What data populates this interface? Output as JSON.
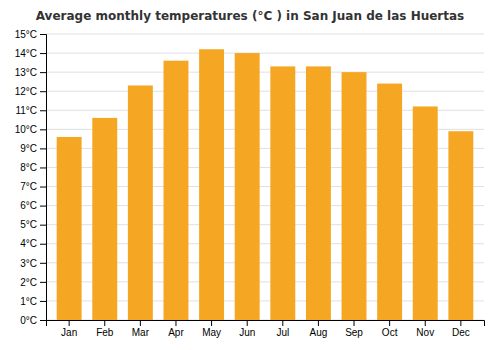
{
  "chart_data": {
    "type": "bar",
    "title": "Average monthly temperatures (°C ) in San Juan de las Huertas",
    "categories": [
      "Jan",
      "Feb",
      "Mar",
      "Apr",
      "May",
      "Jun",
      "Jul",
      "Aug",
      "Sep",
      "Oct",
      "Nov",
      "Dec"
    ],
    "values": [
      9.6,
      10.6,
      12.3,
      13.6,
      14.2,
      14.0,
      13.3,
      13.3,
      13.0,
      12.4,
      11.2,
      9.9
    ],
    "color": "#F5A623",
    "ylim": [
      0,
      15
    ],
    "yticks": [
      {
        "value": 0,
        "label": "0°C"
      },
      {
        "value": 1,
        "label": "1°C"
      },
      {
        "value": 2,
        "label": "2°C"
      },
      {
        "value": 3,
        "label": "3°C"
      },
      {
        "value": 4,
        "label": "4°C"
      },
      {
        "value": 5,
        "label": "5°C"
      },
      {
        "value": 6,
        "label": "6°C"
      },
      {
        "value": 7,
        "label": "7°C"
      },
      {
        "value": 8,
        "label": "8°C"
      },
      {
        "value": 9,
        "label": "9°C"
      },
      {
        "value": 10,
        "label": "10°C"
      },
      {
        "value": 11,
        "label": "11°C"
      },
      {
        "value": 12,
        "label": "12°C"
      },
      {
        "value": 13,
        "label": "13°C"
      },
      {
        "value": 14,
        "label": "14°C"
      },
      {
        "value": 15,
        "label": "15°C"
      }
    ],
    "grid": true
  }
}
